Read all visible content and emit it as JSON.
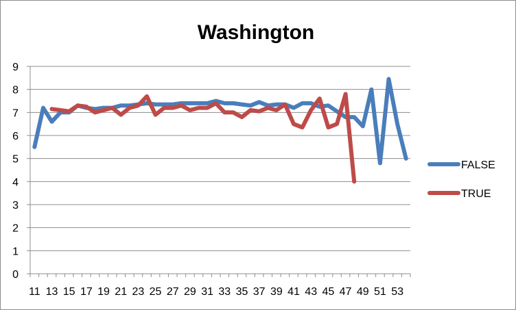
{
  "chart_data": {
    "type": "line",
    "title": "Washington",
    "xlabel": "",
    "ylabel": "",
    "x": [
      11,
      12,
      13,
      14,
      15,
      16,
      17,
      18,
      19,
      20,
      21,
      22,
      23,
      24,
      25,
      26,
      27,
      28,
      29,
      30,
      31,
      32,
      33,
      34,
      35,
      36,
      37,
      38,
      39,
      40,
      41,
      42,
      43,
      44,
      45,
      46,
      47,
      48,
      49,
      50,
      51,
      52,
      53,
      54
    ],
    "x_tick_labels": [
      "11",
      "13",
      "15",
      "17",
      "19",
      "21",
      "23",
      "25",
      "27",
      "29",
      "31",
      "33",
      "35",
      "37",
      "39",
      "41",
      "43",
      "45",
      "47",
      "49",
      "51",
      "53"
    ],
    "ylim": [
      0,
      9
    ],
    "y_ticks": [
      0,
      1,
      2,
      3,
      4,
      5,
      6,
      7,
      8,
      9
    ],
    "grid": "horizontal",
    "legend_position": "right",
    "series": [
      {
        "name": "FALSE",
        "color": "#4a7ebb",
        "values": [
          5.5,
          7.2,
          6.6,
          7.0,
          7.0,
          7.3,
          7.2,
          7.15,
          7.2,
          7.2,
          7.3,
          7.3,
          7.35,
          7.4,
          7.35,
          7.35,
          7.35,
          7.4,
          7.4,
          7.4,
          7.4,
          7.5,
          7.4,
          7.4,
          7.35,
          7.3,
          7.45,
          7.3,
          7.35,
          7.35,
          7.2,
          7.4,
          7.4,
          7.25,
          7.3,
          7.05,
          6.8,
          6.8,
          6.4,
          8.0,
          4.8,
          8.45,
          6.5,
          5.0
        ]
      },
      {
        "name": "TRUE",
        "color": "#be4b48",
        "values": [
          null,
          null,
          7.15,
          7.1,
          7.05,
          7.3,
          7.25,
          7.0,
          7.1,
          7.2,
          6.9,
          7.2,
          7.3,
          7.7,
          6.9,
          7.2,
          7.2,
          7.3,
          7.1,
          7.2,
          7.2,
          7.4,
          7.0,
          7.0,
          6.8,
          7.1,
          7.05,
          7.2,
          7.1,
          7.35,
          6.5,
          6.35,
          7.1,
          7.6,
          6.35,
          6.5,
          7.8,
          4.0,
          null,
          null,
          null,
          null,
          null,
          null
        ]
      }
    ]
  }
}
